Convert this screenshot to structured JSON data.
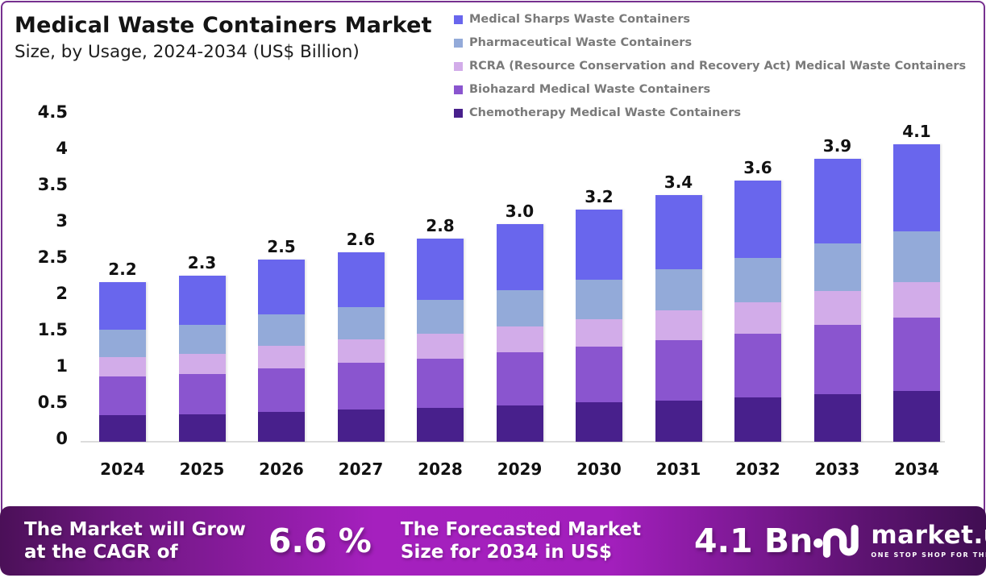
{
  "page": {
    "border_color": "#76308F",
    "background": "#FFFFFF"
  },
  "header": {
    "title": "Medical Waste Containers Market",
    "subtitle": "Size, by Usage, 2024-2034 (US$ Billion)"
  },
  "chart_data": {
    "type": "bar",
    "stacked": true,
    "title": "Medical Waste Containers Market",
    "subtitle": "Size, by Usage, 2024-2034 (US$ Billion)",
    "unit": "US$ Billion",
    "categories": [
      "2024",
      "2025",
      "2026",
      "2027",
      "2028",
      "2029",
      "2030",
      "2031",
      "2032",
      "2033",
      "2034"
    ],
    "total_labels": [
      "2.2",
      "2.3",
      "2.5",
      "2.6",
      "2.8",
      "3.0",
      "3.2",
      "3.4",
      "3.6",
      "3.9",
      "4.1"
    ],
    "series": [
      {
        "name": "Medical Sharps Waste Containers",
        "color": "#6966ED",
        "values": [
          0.65,
          0.68,
          0.75,
          0.76,
          0.84,
          0.91,
          0.97,
          1.02,
          1.07,
          1.17,
          1.2
        ]
      },
      {
        "name": "Pharmaceutical Waste Containers",
        "color": "#93AAD9",
        "values": [
          0.38,
          0.4,
          0.43,
          0.44,
          0.47,
          0.5,
          0.54,
          0.57,
          0.61,
          0.66,
          0.7
        ]
      },
      {
        "name": "RCRA (Resource Conservation and Recovery Act) Medical Waste Containers",
        "color": "#D2ACE9",
        "values": [
          0.27,
          0.28,
          0.31,
          0.32,
          0.34,
          0.36,
          0.38,
          0.41,
          0.43,
          0.47,
          0.49
        ]
      },
      {
        "name": "Biohazard Medical Waste Containers",
        "color": "#8A55CF",
        "values": [
          0.53,
          0.56,
          0.6,
          0.64,
          0.68,
          0.73,
          0.77,
          0.83,
          0.88,
          0.95,
          1.01
        ]
      },
      {
        "name": "Chemotherapy Medical Waste Containers",
        "color": "#48208C",
        "values": [
          0.37,
          0.38,
          0.41,
          0.44,
          0.47,
          0.5,
          0.54,
          0.57,
          0.61,
          0.65,
          0.7
        ]
      }
    ],
    "stack_order_note": "series listed top-to-bottom as stacked in bars; legend order identical",
    "ylim": [
      0,
      4.5
    ],
    "ytick_labels": [
      "4.5",
      "4",
      "3.5",
      "3",
      "2.5",
      "2",
      "1.5",
      "1",
      "0.5",
      "0"
    ],
    "ytick_values": [
      4.5,
      4,
      3.5,
      3,
      2.5,
      2,
      1.5,
      1,
      0.5,
      0
    ],
    "grid": false,
    "legend_position": "top-right"
  },
  "banner": {
    "cagr_label_line1": "The Market will Grow",
    "cagr_label_line2": "at the CAGR of",
    "cagr_value": "6.6 %",
    "forecast_label_line1": "The Forecasted Market",
    "forecast_label_line2": "Size for 2034 in US$",
    "forecast_value": "4.1 Bn",
    "logo": {
      "text": "market.us",
      "tagline": "ONE STOP SHOP FOR THE REPORTS"
    },
    "colors": {
      "gradient_left": "#4B1058",
      "gradient_center": "#A520BE",
      "gradient_right": "#400E52",
      "text": "#FFFFFF"
    }
  }
}
